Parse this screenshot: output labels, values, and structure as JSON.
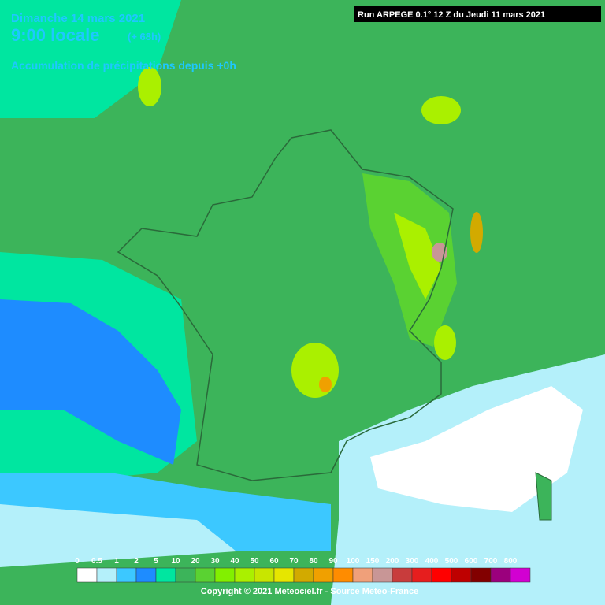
{
  "header": {
    "date": "Dimanche 14 mars 2021",
    "time": "9:00 locale",
    "offset": "(+ 68h)",
    "subtitle": "Accumulation de précipitations depuis +0h",
    "run": "Run ARPEGE 0.1° 12 Z du Jeudi 11 mars 2021"
  },
  "legend": {
    "labels": [
      0,
      0.5,
      1,
      2,
      5,
      10,
      20,
      30,
      40,
      50,
      60,
      70,
      80,
      90,
      100,
      150,
      200,
      300,
      400,
      500,
      600,
      700,
      800
    ],
    "colors": [
      "#ffffff",
      "#b4f0fa",
      "#3cc8ff",
      "#1e8cff",
      "#00e6a0",
      "#3cb45a",
      "#5ad232",
      "#82f000",
      "#aaf000",
      "#c8e600",
      "#e6e600",
      "#d2aa00",
      "#f0a000",
      "#ff8c00",
      "#f0a07a",
      "#c89696",
      "#c83c3c",
      "#e61e1e",
      "#ff0000",
      "#be0000",
      "#820000",
      "#9b007d",
      "#d200d2"
    ]
  },
  "footer": {
    "copyright": "Copyright © 2021 Meteociel.fr - Source Meteo-France"
  }
}
